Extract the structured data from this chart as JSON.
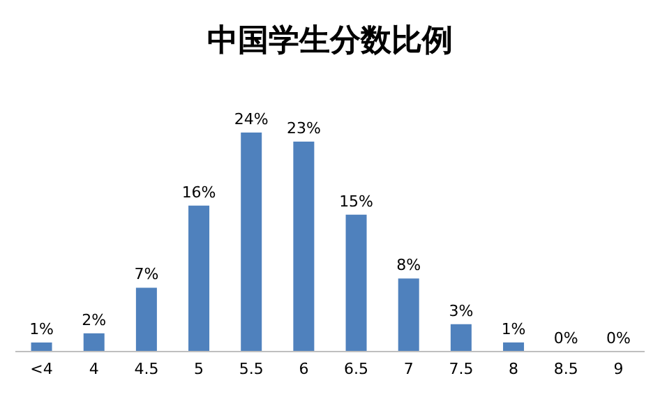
{
  "chart_data": {
    "type": "bar",
    "title": "中国学生分数比例",
    "categories": [
      "<4",
      "4",
      "4.5",
      "5",
      "5.5",
      "6",
      "6.5",
      "7",
      "7.5",
      "8",
      "8.5",
      "9"
    ],
    "values": [
      1,
      2,
      7,
      16,
      24,
      23,
      15,
      8,
      3,
      1,
      0,
      0
    ],
    "value_labels": [
      "1%",
      "2%",
      "7%",
      "16%",
      "24%",
      "23%",
      "15%",
      "8%",
      "3%",
      "1%",
      "0%",
      "0%"
    ],
    "color": "#4f81bd"
  }
}
